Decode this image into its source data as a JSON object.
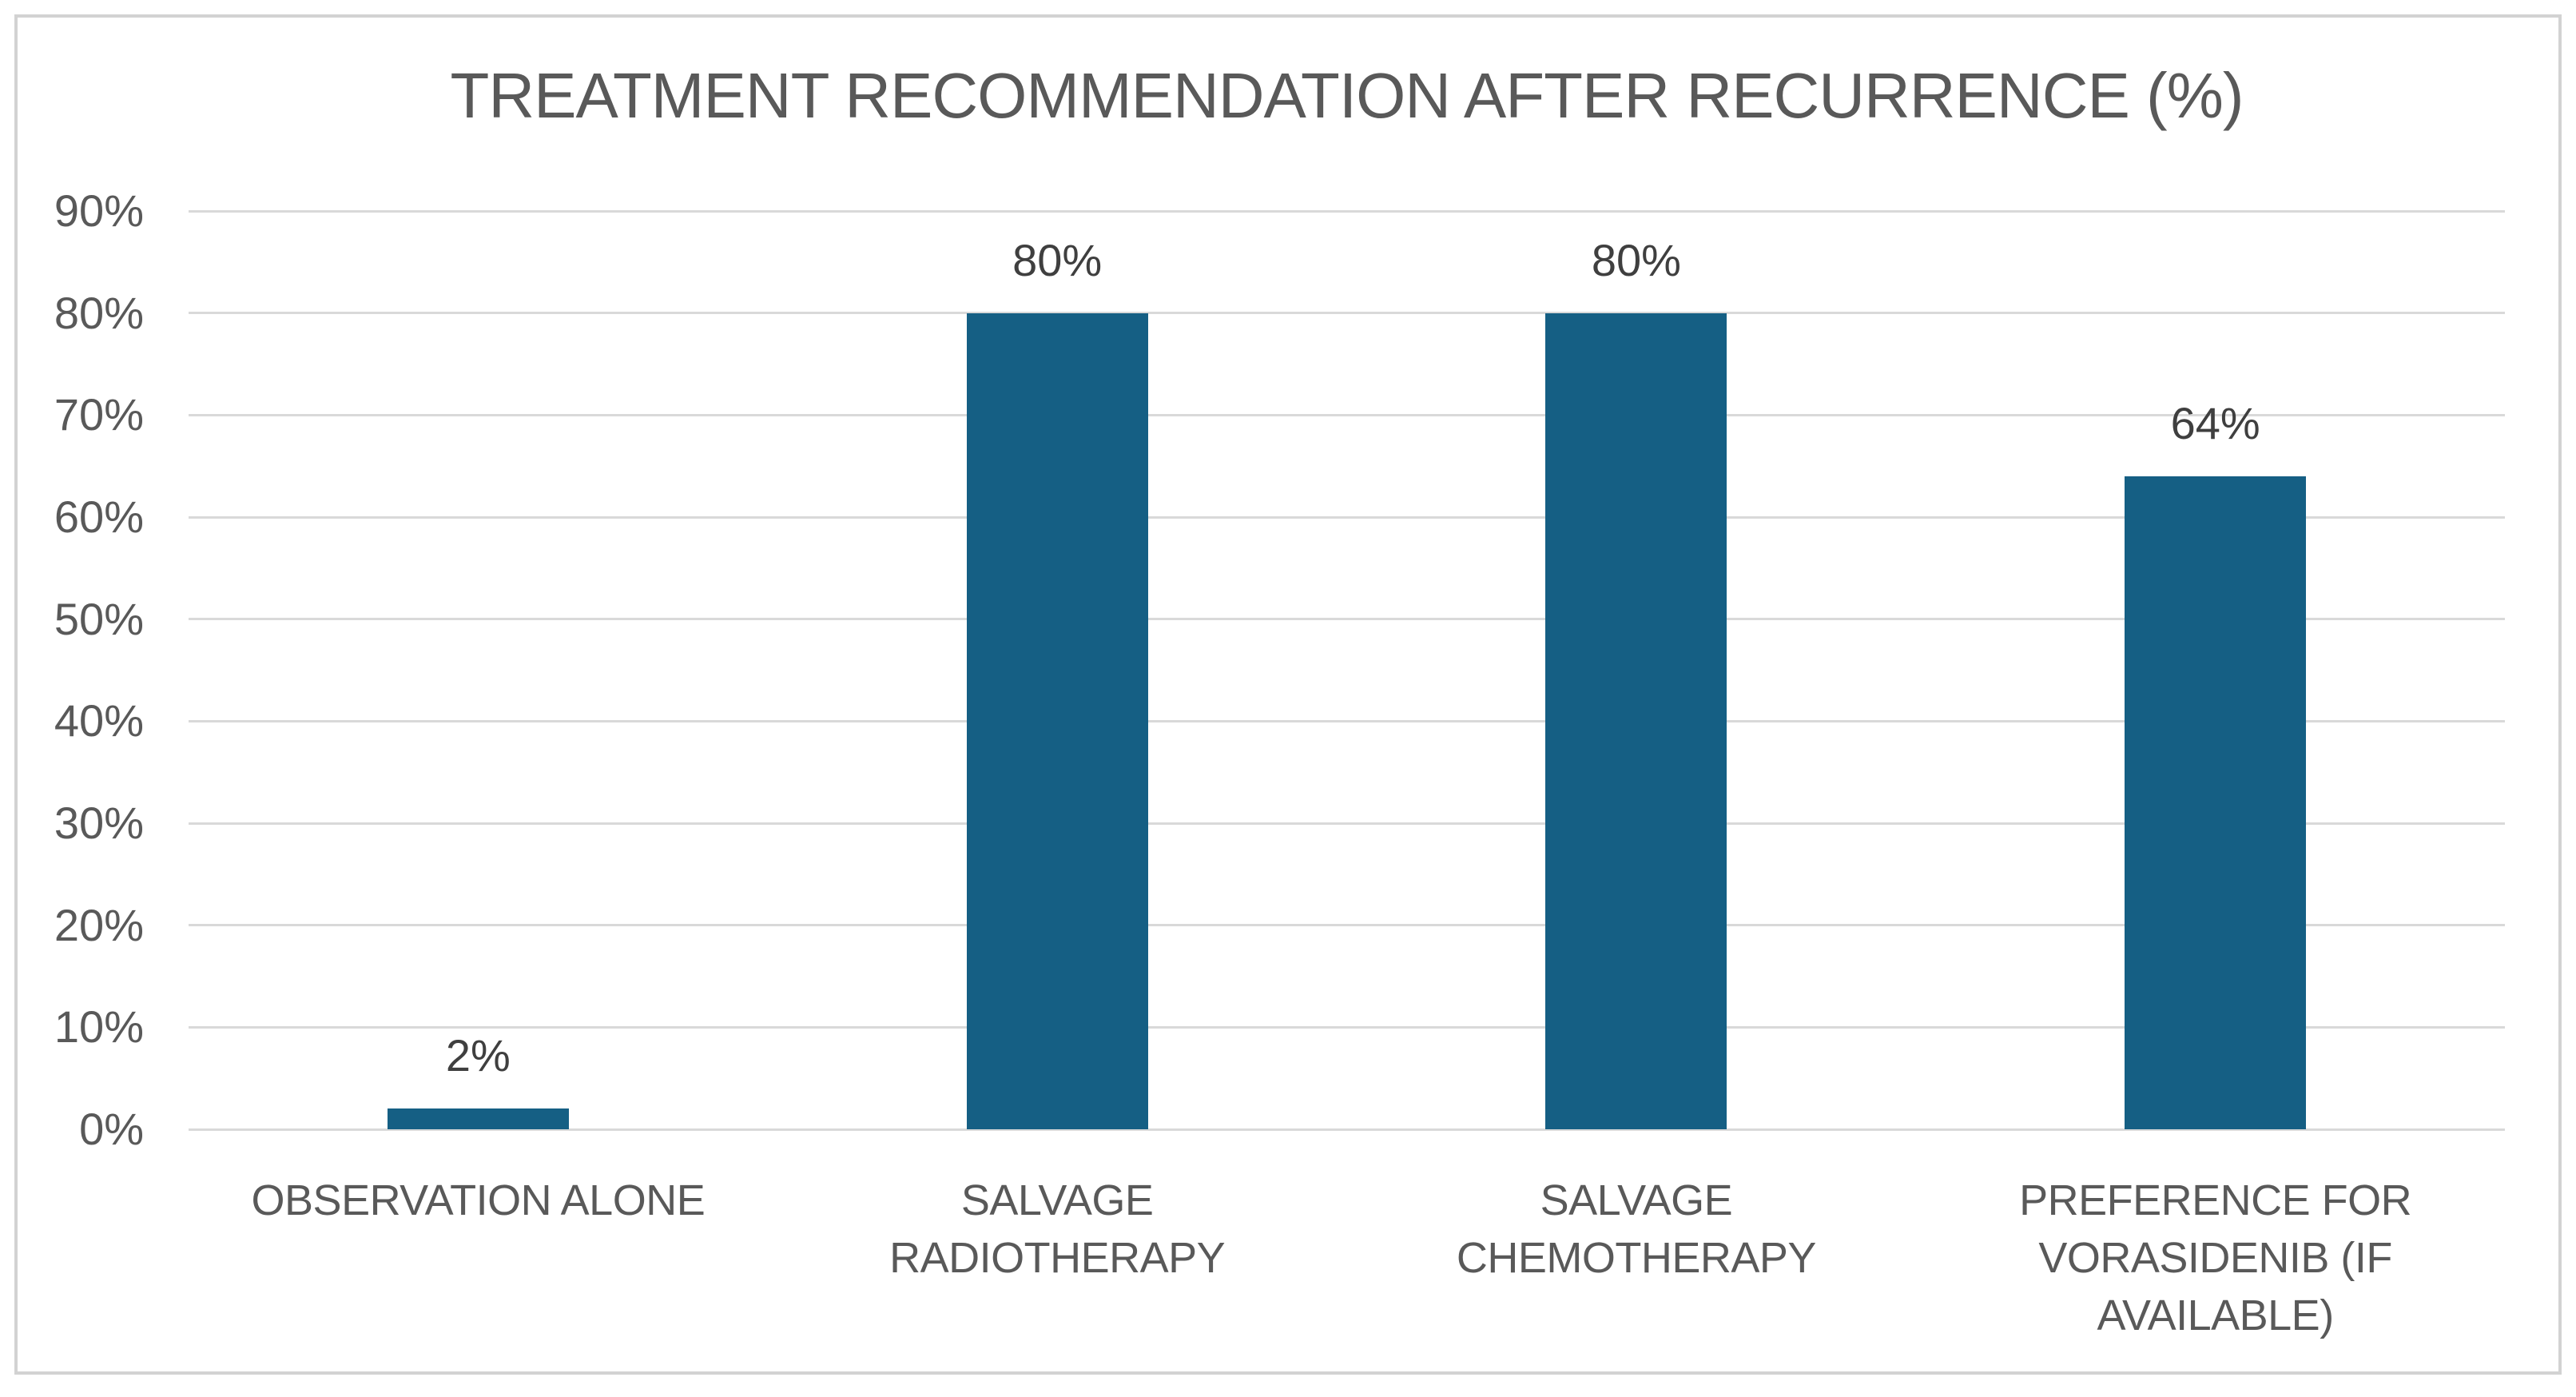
{
  "chart_data": {
    "type": "bar",
    "title": "TREATMENT RECOMMENDATION AFTER RECURRENCE (%)",
    "categories": [
      "OBSERVATION ALONE",
      "SALVAGE RADIOTHERAPY",
      "SALVAGE CHEMOTHERAPY",
      "PREFERENCE FOR VORASIDENIB (IF AVAILABLE)"
    ],
    "values": [
      2,
      80,
      80,
      64
    ],
    "data_labels": [
      "2%",
      "80%",
      "80%",
      "64%"
    ],
    "xlabel": "",
    "ylabel": "",
    "y_axis": {
      "min": 0,
      "max": 90,
      "tick_values": [
        0,
        10,
        20,
        30,
        40,
        50,
        60,
        70,
        80,
        90
      ],
      "tick_labels": [
        "0%",
        "10%",
        "20%",
        "30%",
        "40%",
        "50%",
        "60%",
        "70%",
        "80%",
        "90%"
      ]
    },
    "grid": "horizontal",
    "legend": "none",
    "colors": {
      "bar": "#155f84",
      "title_text": "#595959",
      "axis_text": "#595959",
      "data_label_text": "#3f3f3f",
      "gridline": "#d9d9d9",
      "background": "#ffffff",
      "frame_border": "#d2d2d2"
    }
  }
}
